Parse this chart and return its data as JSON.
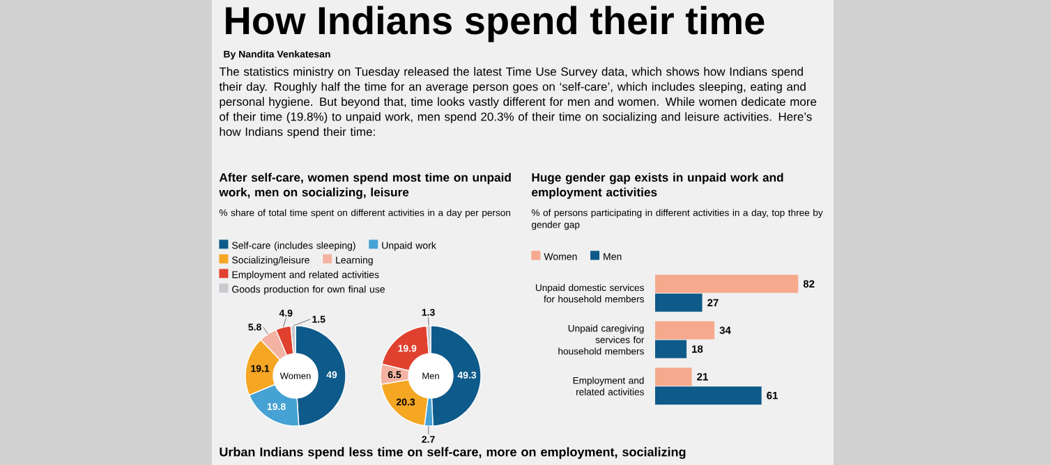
{
  "chart_data": [
    {
      "type": "other",
      "title": "How Indians spend their time",
      "subtitle": "By Nandita Venkatesan",
      "annotations": [
        "The statistics ministry on Tuesday released the latest Time Use Survey data, which shows how Indians spend their day. Roughly half the time for an average person goes on ‘self-care’, which includes sleeping, eating and personal hygiene. But beyond that, time looks vastly different for men and women. While women dedicate more of their time (19.8%) to unpaid work, men spend 20.3% of their time on socializing and leisure activities. Here’s how Indians spend their time:",
        "Urban Indians spend less time on self-care, more on employment, socializing"
      ]
    },
    {
      "type": "donut",
      "title": "After self-care, women spend most time on unpaid work, men on socializing, leisure",
      "subtitle": "% share of total time spent on different activities in a day per person",
      "categories": [
        "Self-care (includes sleeping)",
        "Unpaid work",
        "Socializing/leisure",
        "Learning",
        "Employment and related activities",
        "Goods production for own final use"
      ],
      "colors": [
        "#0e5a8a",
        "#46a2d4",
        "#f5a623",
        "#f4b3a2",
        "#e0412f",
        "#c9c9cf"
      ],
      "series": [
        {
          "name": "Women",
          "values": [
            49,
            19.8,
            19.1,
            5.8,
            4.9,
            1.5
          ]
        },
        {
          "name": "Men",
          "values": [
            49.3,
            2.7,
            20.3,
            6.5,
            19.9,
            1.3
          ]
        }
      ],
      "data_labels": true,
      "legend": "top"
    },
    {
      "type": "bar",
      "orientation": "horizontal",
      "title": "Huge gender gap exists in unpaid work and employment activities",
      "subtitle": "% of persons participating in different activities in a day, top three by gender gap",
      "categories": [
        "Unpaid domestic services for household members",
        "Unpaid caregiving services for household members",
        "Employment and related activities"
      ],
      "series": [
        {
          "name": "Women",
          "color": "#f6a98d",
          "values": [
            82,
            34,
            21
          ]
        },
        {
          "name": "Men",
          "color": "#0e5a88",
          "values": [
            27,
            18,
            61
          ]
        }
      ],
      "data_labels": true,
      "legend": "top left"
    }
  ]
}
